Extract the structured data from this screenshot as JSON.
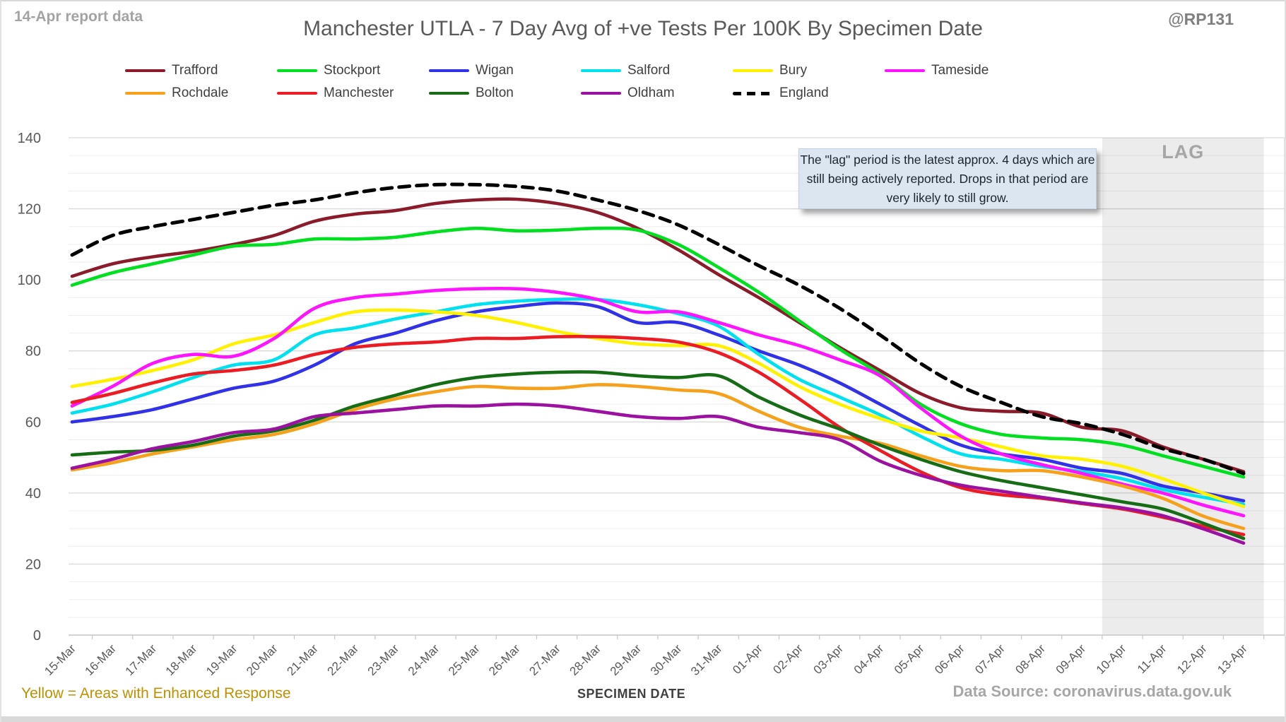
{
  "header": {
    "report_note": "14-Apr report data",
    "title": "Manchester UTLA - 7 Day Avg of +ve Tests Per 100K By Specimen Date",
    "handle": "@RP131"
  },
  "annotation": {
    "text": "The \"lag\" period is the latest approx. 4 days which are still being actively reported. Drops in that period are very likely to still grow.",
    "background": "#dce6f1"
  },
  "footer": {
    "note": "Yellow = Areas with Enhanced Response",
    "note_color": "#bf9000",
    "xlabel": "SPECIMEN DATE",
    "source": "Data Source: coronavirus.data.gov.uk"
  },
  "chart_data": {
    "type": "line",
    "title": "Manchester UTLA - 7 Day Avg of +ve Tests Per 100K By Specimen Date",
    "xlabel": "SPECIMEN DATE",
    "ylabel": "",
    "ylim": [
      0,
      140
    ],
    "y_ticks": [
      0,
      20,
      40,
      60,
      80,
      100,
      120,
      140
    ],
    "grid": "horizontal major every 20, minor every 5",
    "legend_position": "top",
    "lag_region": {
      "label": "LAG",
      "start": "10-Apr",
      "end": "13-Apr",
      "fill": "rgba(0,0,0,0.075)"
    },
    "x": [
      "15-Mar",
      "16-Mar",
      "17-Mar",
      "18-Mar",
      "19-Mar",
      "20-Mar",
      "21-Mar",
      "22-Mar",
      "23-Mar",
      "24-Mar",
      "25-Mar",
      "26-Mar",
      "27-Mar",
      "28-Mar",
      "29-Mar",
      "30-Mar",
      "31-Mar",
      "01-Apr",
      "02-Apr",
      "03-Apr",
      "04-Apr",
      "05-Apr",
      "06-Apr",
      "07-Apr",
      "08-Apr",
      "09-Apr",
      "10-Apr",
      "11-Apr",
      "12-Apr",
      "13-Apr"
    ],
    "series": [
      {
        "name": "Trafford",
        "color": "#8B1B2B",
        "dashed": false,
        "values": [
          101,
          104.5,
          106.5,
          108,
          110,
          112.5,
          116.5,
          118.5,
          119.5,
          121.5,
          122.5,
          122.7,
          121.5,
          119,
          114.5,
          108.5,
          101.5,
          95,
          88,
          81,
          74.5,
          68,
          64,
          63,
          62.5,
          58.5,
          57.5,
          53,
          49.5,
          46
        ]
      },
      {
        "name": "Stockport",
        "color": "#00DF20",
        "dashed": false,
        "values": [
          98.5,
          102,
          104.5,
          107,
          109.5,
          110,
          111.5,
          111.5,
          112,
          113.5,
          114.5,
          113.8,
          114,
          114.5,
          114,
          110,
          103.5,
          96.5,
          88.5,
          80.5,
          73.5,
          65,
          59.5,
          56.5,
          55.5,
          55,
          53.5,
          50.5,
          47.5,
          44.5
        ]
      },
      {
        "name": "Wigan",
        "color": "#3131E8",
        "dashed": false,
        "values": [
          60,
          61.5,
          63.5,
          66.5,
          69.5,
          71.5,
          76,
          82,
          85,
          88.5,
          91,
          92.5,
          93.5,
          92.5,
          88,
          88,
          84.5,
          80,
          76,
          71,
          65,
          59,
          53.5,
          51,
          49.5,
          47,
          45.5,
          42,
          40,
          37.8
        ]
      },
      {
        "name": "Salford",
        "color": "#00E1F0",
        "dashed": false,
        "values": [
          62.5,
          65,
          68.5,
          72.5,
          76,
          77.5,
          84.5,
          86.5,
          89,
          91,
          93,
          94,
          94.5,
          94.5,
          93,
          90.5,
          87,
          79,
          72,
          67,
          62,
          56,
          51,
          49.5,
          47.5,
          46,
          44,
          41,
          38.8,
          36.8
        ]
      },
      {
        "name": "Bury",
        "color": "#FFF100",
        "dashed": false,
        "values": [
          70,
          72,
          74.5,
          77.5,
          82,
          84.5,
          88,
          91,
          91.5,
          91,
          90,
          88,
          85.5,
          83.5,
          82,
          81.5,
          81.5,
          76.5,
          70,
          65,
          61,
          57.5,
          55.5,
          53,
          50.5,
          49.5,
          47.5,
          44,
          40,
          36.2
        ]
      },
      {
        "name": "Tameside",
        "color": "#FF14FF",
        "dashed": false,
        "values": [
          64.5,
          70,
          76.5,
          79,
          78.5,
          83.5,
          92,
          95,
          96,
          97,
          97.5,
          97.5,
          96.5,
          94.5,
          91,
          91,
          88,
          84.5,
          81.5,
          77.5,
          73,
          64,
          56,
          51,
          48,
          45.5,
          42.5,
          40,
          36.6,
          33.6
        ]
      },
      {
        "name": "Rochdale",
        "color": "#F5A11C",
        "dashed": false,
        "values": [
          46.5,
          48.5,
          51,
          53,
          55,
          56.5,
          59.5,
          63.5,
          66.5,
          68.5,
          70,
          69.5,
          69.5,
          70.5,
          70,
          69,
          68,
          63,
          58.5,
          56,
          54,
          50.5,
          47.5,
          46.3,
          46.3,
          44.5,
          42,
          38.5,
          33.5,
          30
        ]
      },
      {
        "name": "Manchester",
        "color": "#EC1C24",
        "dashed": false,
        "values": [
          65.5,
          68,
          71,
          73.5,
          74.5,
          76,
          79,
          81,
          82,
          82.5,
          83.5,
          83.5,
          84,
          84,
          83.5,
          82.5,
          79.5,
          74,
          66.5,
          58.5,
          52,
          46,
          41.5,
          39.5,
          38.5,
          37,
          35.5,
          33.2,
          30.6,
          28.3
        ]
      },
      {
        "name": "Bolton",
        "color": "#166D16",
        "dashed": false,
        "values": [
          50.7,
          51.5,
          52,
          53.5,
          56,
          57.5,
          60.5,
          64.5,
          67.5,
          70.5,
          72.5,
          73.5,
          74,
          74,
          73,
          72.5,
          73,
          67,
          62,
          58,
          53.5,
          49.5,
          46,
          43.5,
          41.5,
          39.5,
          37.5,
          35.5,
          31.5,
          27.2
        ]
      },
      {
        "name": "Oldham",
        "color": "#9C12A0",
        "dashed": false,
        "values": [
          47,
          49.5,
          52.5,
          54.5,
          57,
          58,
          61.5,
          62.5,
          63.5,
          64.5,
          64.5,
          65,
          64.5,
          63,
          61.5,
          61,
          61.5,
          58.5,
          57,
          55,
          49,
          45,
          42.2,
          40.5,
          38.8,
          37.2,
          35.8,
          33.6,
          29.9,
          25.9
        ]
      },
      {
        "name": "England",
        "color": "#000000",
        "dashed": true,
        "values": [
          107,
          112.5,
          115,
          117,
          119,
          121,
          122.5,
          124.5,
          126,
          126.8,
          126.8,
          126.3,
          125,
          122.5,
          119.5,
          115.5,
          110,
          104,
          98.5,
          92,
          84.5,
          76.5,
          70,
          65.5,
          61.5,
          59.5,
          56.5,
          52.5,
          49.5,
          45.5
        ]
      }
    ]
  }
}
